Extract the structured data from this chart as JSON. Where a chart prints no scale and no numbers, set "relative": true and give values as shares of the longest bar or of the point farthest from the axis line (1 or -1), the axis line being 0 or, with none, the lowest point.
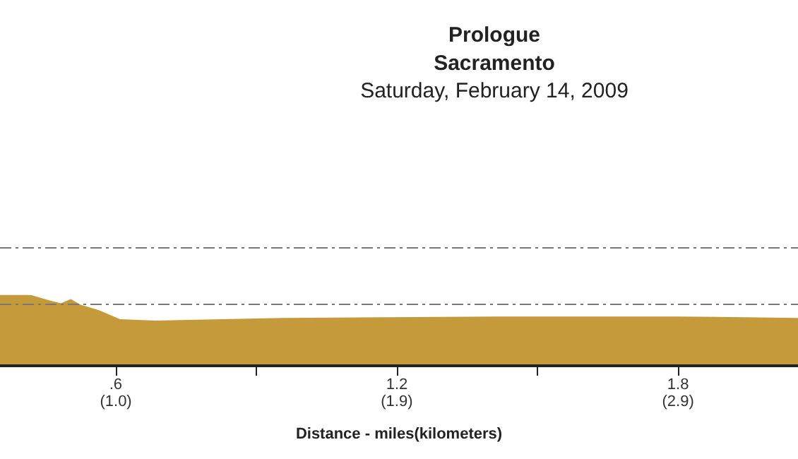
{
  "chart_data": {
    "type": "area",
    "title": "Prologue\nSacramento",
    "subtitle": "Saturday, February 14, 2009",
    "xlabel": "Distance - miles(kilometers)",
    "x": [
      0.353,
      0.419,
      0.459,
      0.483,
      0.504,
      0.525,
      0.564,
      0.609,
      0.685,
      0.956,
      1.408,
      1.8,
      2.056
    ],
    "series": [
      {
        "color": "#c59a3a",
        "values": [
          1,
          1,
          0.92,
          0.88,
          0.94,
          0.86,
          0.78,
          0.65,
          0.63,
          0.67,
          0.69,
          0.69,
          0.67
        ]
      }
    ],
    "relative": true,
    "xlim": [
      0.353,
      2.056
    ],
    "xticks": [
      {
        "value": 0.6,
        "label": ".6"
      },
      {
        "value": 0.9,
        "label": null
      },
      1.2,
      {
        "value": 1.5,
        "label": null
      },
      1.8
    ],
    "x2lim": [
      0.568,
      3.309
    ],
    "x2ticks": [
      {
        "value": 0.966,
        "label": "(1.0)"
      },
      {
        "value": 1.931,
        "label": "(1.9)"
      },
      {
        "value": 2.897,
        "label": "(2.9)"
      }
    ],
    "ref_lines": [
      {
        "axis": "y",
        "value": 1.69,
        "color": "#777777",
        "line_style": "dashed"
      },
      {
        "axis": "y",
        "value": 0.86,
        "color": "#777777",
        "line_style": "dashed"
      }
    ],
    "tick_labels": "x",
    "grid": false
  }
}
